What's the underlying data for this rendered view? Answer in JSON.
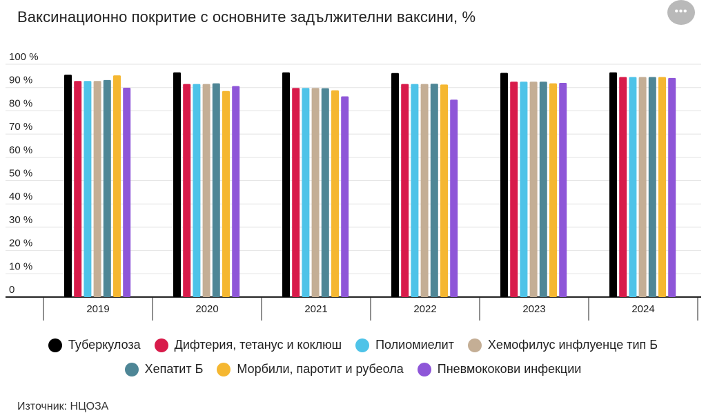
{
  "title": "Ваксинационно покритие с основните задължителни ваксини, %",
  "menu": {
    "icon": "more-dots-icon",
    "glyph": "•••"
  },
  "source": "Източник: НЦОЗА",
  "chart_data": {
    "type": "bar",
    "title": "Ваксинационно покритие с основните задължителни ваксини, %",
    "categories": [
      "2019",
      "2020",
      "2021",
      "2022",
      "2023",
      "2024"
    ],
    "ylim": [
      0,
      100
    ],
    "yticks": [
      "0",
      "10 %",
      "20 %",
      "30 %",
      "40 %",
      "50 %",
      "60 %",
      "70 %",
      "80 %",
      "90 %",
      "100 %"
    ],
    "grid": true,
    "legend_position": "bottom",
    "series": [
      {
        "name": "Туберкулоза",
        "color": "#000000",
        "values": [
          95.5,
          96.5,
          96.5,
          96.2,
          96.3,
          96.5
        ]
      },
      {
        "name": "Дифтерия, тетанус и коклюш",
        "color": "#d81b4a",
        "values": [
          92.8,
          91.5,
          89.8,
          91.5,
          92.5,
          94.5
        ]
      },
      {
        "name": "Полиомиелит",
        "color": "#4ec3e8",
        "values": [
          92.8,
          91.5,
          89.8,
          91.5,
          92.5,
          94.5
        ]
      },
      {
        "name": "Хемофилус инфлуенце тип Б",
        "color": "#c4ae95",
        "values": [
          92.8,
          91.5,
          89.8,
          91.5,
          92.5,
          94.5
        ]
      },
      {
        "name": "Хепатит Б",
        "color": "#4e8696",
        "values": [
          93.2,
          91.8,
          89.7,
          91.6,
          92.5,
          94.5
        ]
      },
      {
        "name": "Морбили, паротит и рубеола",
        "color": "#f5b731",
        "values": [
          95.2,
          88.5,
          88.8,
          91.3,
          91.8,
          94.5
        ]
      },
      {
        "name": "Пневмококови инфекции",
        "color": "#8e56d8",
        "values": [
          89.9,
          90.6,
          86.2,
          84.8,
          92.0,
          94.1
        ]
      }
    ]
  }
}
